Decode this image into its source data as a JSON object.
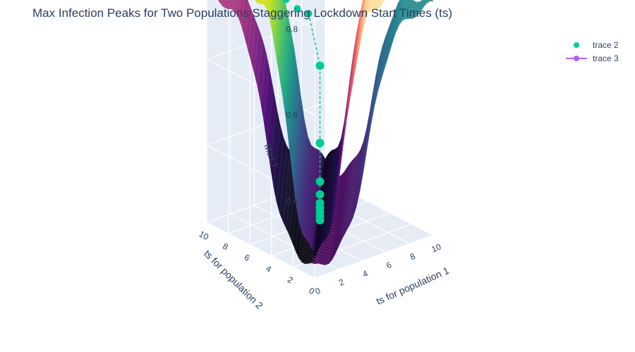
{
  "title": "Max Infection Peaks for Two Populations Staggering Lockdown Start Times (ts)",
  "colors": {
    "trace2": "#00cc96",
    "trace3": "#ab63fa",
    "pane": "#e5ecf6",
    "grid": "#ffffff",
    "text": "#2a3f5f"
  },
  "legend": {
    "items": [
      {
        "label": "trace 2",
        "kind": "marker",
        "color": "#00cc96"
      },
      {
        "label": "trace 3",
        "kind": "line+marker",
        "color": "#ab63fa"
      }
    ]
  },
  "chart_data": {
    "type": "surface3d",
    "title": "Max Infection Peaks for Two Populations Staggering Lockdown Start Times (ts)",
    "xlabel": "ts for population 1",
    "ylabel": "ts for population 2",
    "zlabel": "Max I",
    "x_ticks": [
      0,
      2,
      4,
      6,
      8,
      10
    ],
    "y_ticks": [
      0,
      2,
      4,
      6,
      8,
      10
    ],
    "z_ticks": [
      0.4,
      0.6,
      0.8
    ],
    "xlim": [
      0,
      10
    ],
    "ylim": [
      0,
      10
    ],
    "zlim": [
      0.22,
      0.84
    ],
    "grid": true,
    "legend_position": "top-right",
    "surface_colorscales": [
      "viridis",
      "magma"
    ],
    "surface_description": "Two surfaces over ts1 and ts2, each peaking near 0.8 where the start times differ most and dropping to about 0.25 when they coincide",
    "series": [
      {
        "name": "trace 2",
        "mode": "markers",
        "color": "#00cc96",
        "points_ts1_ts2_maxI": [
          [
            0,
            10,
            0.83
          ],
          [
            0.5,
            9.5,
            0.82
          ],
          [
            1,
            9,
            0.81
          ],
          [
            1.5,
            8.5,
            0.8
          ],
          [
            2,
            8,
            0.79
          ],
          [
            2.5,
            7.5,
            0.78
          ],
          [
            3,
            7,
            0.77
          ],
          [
            3.5,
            6.5,
            0.75
          ],
          [
            4,
            6,
            0.73
          ],
          [
            4.5,
            5.5,
            0.72
          ],
          [
            5,
            5,
            0.6
          ],
          [
            5,
            5,
            0.42
          ],
          [
            5,
            5,
            0.33
          ],
          [
            5,
            5,
            0.3
          ],
          [
            5,
            5,
            0.28
          ],
          [
            5,
            5,
            0.27
          ],
          [
            5,
            5,
            0.26
          ],
          [
            5,
            5,
            0.25
          ],
          [
            5,
            5,
            0.24
          ]
        ]
      },
      {
        "name": "trace 3",
        "mode": "lines+markers",
        "color": "#ab63fa",
        "points_ts1_ts2_maxI": []
      }
    ]
  }
}
